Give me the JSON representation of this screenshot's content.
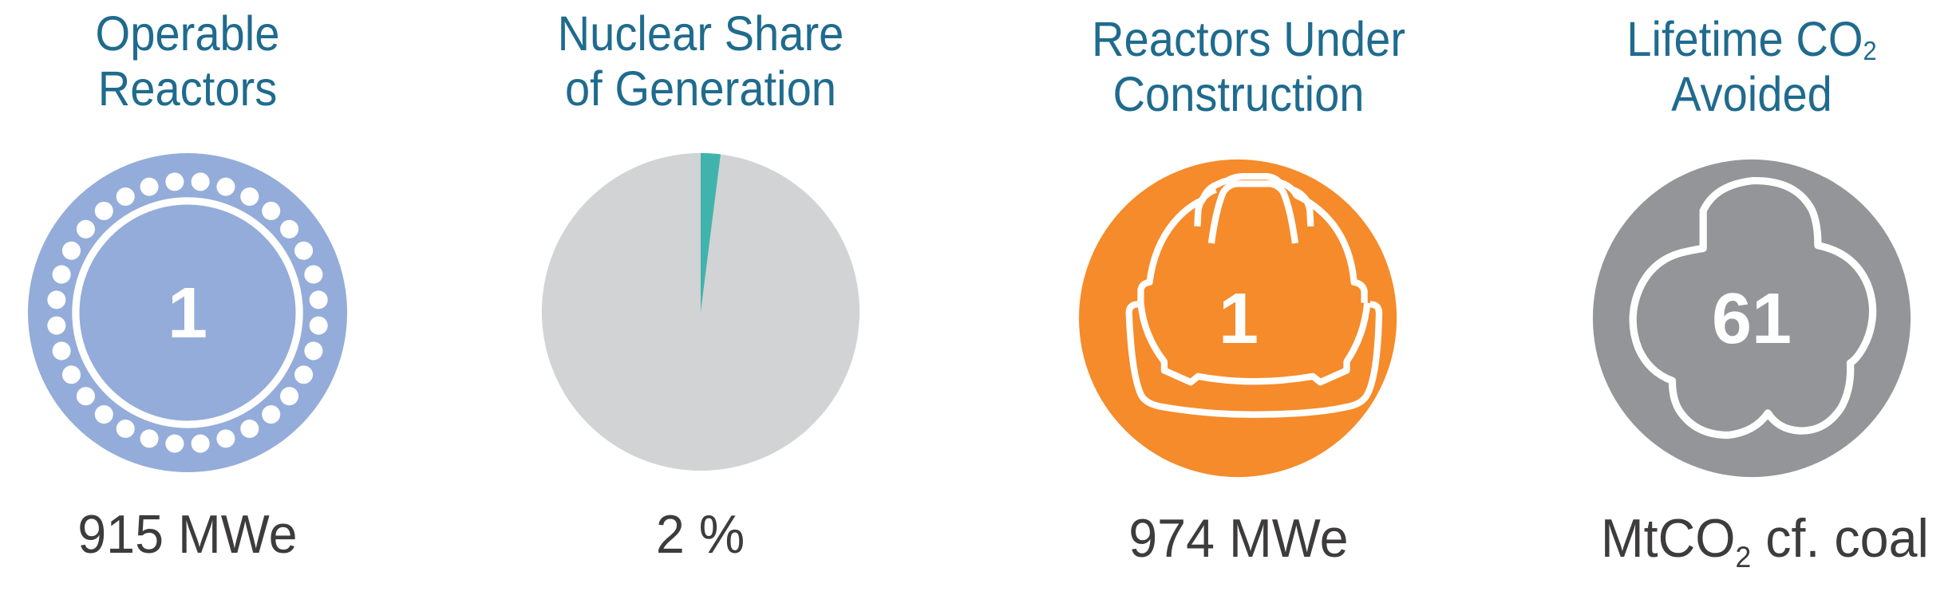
{
  "chart_data": {
    "type": "infographic",
    "title": "",
    "metrics": [
      {
        "title": "Operable Reactors",
        "value": 1,
        "value_label": "1",
        "caption": "915 MWe",
        "icon": "reactor-ring-icon",
        "color": "#94acd9"
      },
      {
        "title": "Nuclear Share of Generation",
        "type": "pie",
        "value": 2,
        "caption": "2 %",
        "categories": [
          "Nuclear",
          "Other"
        ],
        "values": [
          2,
          98
        ],
        "colors": [
          "#41b3ad",
          "#d1d3d4"
        ]
      },
      {
        "title": "Reactors Under Construction",
        "value": 1,
        "value_label": "1",
        "caption": "974 MWe",
        "icon": "hard-hat-icon",
        "color": "#f58b2a"
      },
      {
        "title": "Lifetime CO2 Avoided",
        "value": 61,
        "value_label": "61",
        "caption": "MtCO2 cf. coal",
        "icon": "cloud-icon",
        "color": "#939598"
      }
    ]
  },
  "panels": {
    "operable": {
      "title_line1": "Operable",
      "title_line2": "Reactors",
      "value": "1",
      "caption": "915 MWe",
      "color": "#94acd9"
    },
    "share": {
      "title_line1": "Nuclear Share",
      "title_line2": "of Generation",
      "percent": 2,
      "caption": "2 %",
      "slice_color": "#41b3ad",
      "rest_color": "#d1d3d4"
    },
    "construction": {
      "title_line1": "Reactors Under",
      "title_line2": "Construction",
      "value": "1",
      "caption": "974 MWe",
      "color": "#f58b2a"
    },
    "co2": {
      "title_line1_pre": "Lifetime CO",
      "title_line1_sub": "2",
      "title_line2": "Avoided",
      "value": "61",
      "caption_pre": "MtCO",
      "caption_sub": "2",
      "caption_post": " cf. coal",
      "color": "#939598"
    }
  },
  "colors": {
    "title": "#1f6b8e",
    "caption": "#3d3b3c"
  }
}
